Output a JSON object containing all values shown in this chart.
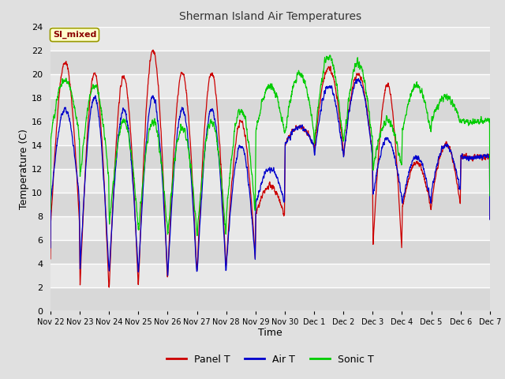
{
  "title": "Sherman Island Air Temperatures",
  "xlabel": "Time",
  "ylabel": "Temperature (C)",
  "ylim": [
    0,
    24
  ],
  "yticks": [
    0,
    2,
    4,
    6,
    8,
    10,
    12,
    14,
    16,
    18,
    20,
    22,
    24
  ],
  "bg_color": "#e0e0e0",
  "plot_bg_alt1": "#d8d8d8",
  "plot_bg_alt2": "#e8e8e8",
  "legend_label": "SI_mixed",
  "legend_text_color": "#8b0000",
  "legend_bg": "#ffffcc",
  "legend_edge": "#999900",
  "line_colors": {
    "panel": "#cc0000",
    "air": "#0000cc",
    "sonic": "#00cc00"
  },
  "figsize": [
    6.4,
    4.8
  ],
  "dpi": 100
}
